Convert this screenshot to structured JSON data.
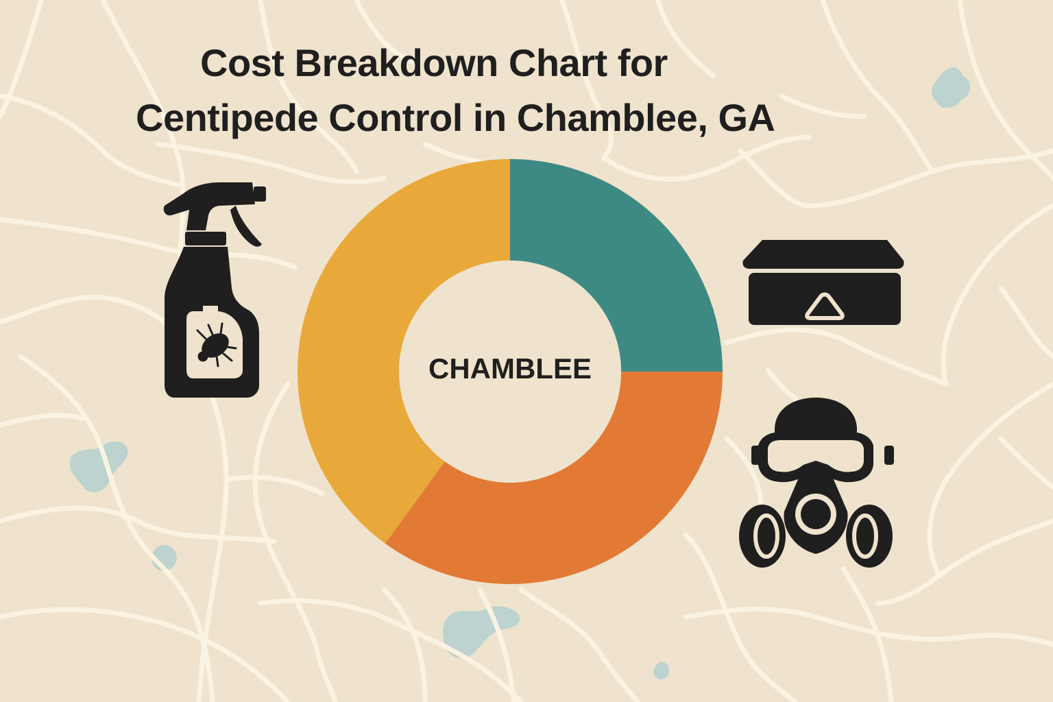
{
  "title_lines": [
    "Cost Breakdown Chart for",
    "Centipede Control in Chamblee, GA"
  ],
  "colors": {
    "background": "#efe3cd",
    "roads": "#fbf3e2",
    "water": "#bcd3cf",
    "icon": "#1f1f1f"
  },
  "icons": [
    "spray-bottle-icon",
    "bait-station-icon",
    "respirator-mask-icon"
  ],
  "chart_data": {
    "type": "pie",
    "title": "Cost Breakdown Chart for Centipede Control in Chamblee, GA",
    "center_label": "CHAMBLEE",
    "slices": [
      {
        "value": 25,
        "color": "#3d8a85"
      },
      {
        "value": 35,
        "color": "#e27a35"
      },
      {
        "value": 40,
        "color": "#e9a93a"
      }
    ]
  }
}
